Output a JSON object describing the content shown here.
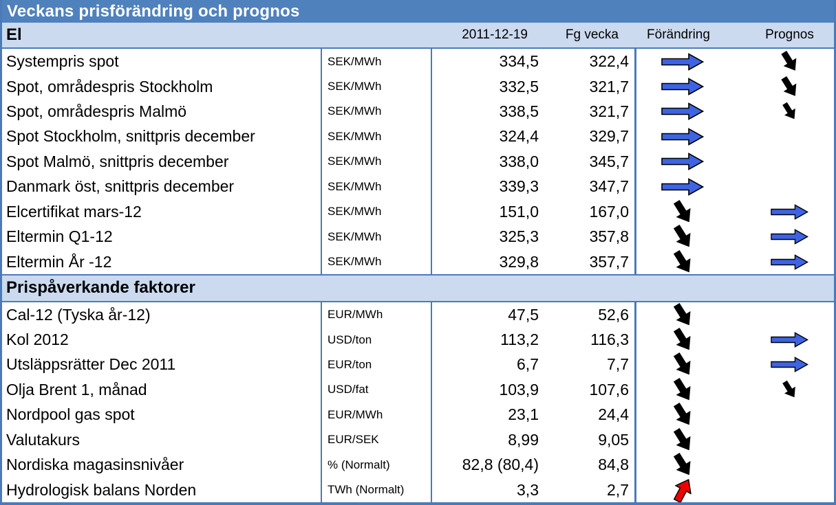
{
  "title": "Veckans prisförändring och prognos",
  "columns": {
    "date": "2011-12-19",
    "prev_week": "Fg vecka",
    "change": "Förändring",
    "forecast": "Prognos"
  },
  "colors": {
    "header_bg": "#4F81BD",
    "band_bg": "#CBDAEF",
    "border": "#4A7BB8",
    "arrow_blue": "#3E64E4",
    "arrow_red": "#EE0000",
    "arrow_black": "#000000"
  },
  "icons": {
    "right": "arrow-right-blue-icon",
    "down": "arrow-down-black-icon",
    "down_sm": "arrow-down-black-small-icon",
    "up": "arrow-up-red-icon"
  },
  "sections": [
    {
      "label": "El",
      "rows": [
        {
          "name": "Systempris spot",
          "unit": "SEK/MWh",
          "current": "334,5",
          "prev": "322,4",
          "change": "right",
          "forecast": "down"
        },
        {
          "name": "Spot, områdespris Stockholm",
          "unit": "SEK/MWh",
          "current": "332,5",
          "prev": "321,7",
          "change": "right",
          "forecast": "down"
        },
        {
          "name": "Spot, områdespris Malmö",
          "unit": "SEK/MWh",
          "current": "338,5",
          "prev": "321,7",
          "change": "right",
          "forecast": "down_sm"
        },
        {
          "name": "Spot Stockholm, snittpris december",
          "unit": "SEK/MWh",
          "current": "324,4",
          "prev": "329,7",
          "change": "right",
          "forecast": ""
        },
        {
          "name": "Spot Malmö, snittpris december",
          "unit": "SEK/MWh",
          "current": "338,0",
          "prev": "345,7",
          "change": "right",
          "forecast": ""
        },
        {
          "name": "Danmark öst, snittpris december",
          "unit": "SEK/MWh",
          "current": "339,3",
          "prev": "347,7",
          "change": "right",
          "forecast": ""
        },
        {
          "name": "Elcertifikat mars-12",
          "unit": "SEK/MWh",
          "current": "151,0",
          "prev": "167,0",
          "change": "down",
          "forecast": "right"
        },
        {
          "name": "Eltermin Q1-12",
          "unit": "SEK/MWh",
          "current": "325,3",
          "prev": "357,8",
          "change": "down",
          "forecast": "right"
        },
        {
          "name": "Eltermin År -12",
          "unit": "SEK/MWh",
          "current": "329,8",
          "prev": "357,7",
          "change": "down",
          "forecast": "right"
        }
      ]
    },
    {
      "label": "Prispåverkande faktorer",
      "rows": [
        {
          "name": "Cal-12 (Tyska år-12)",
          "unit": "EUR/MWh",
          "current": "47,5",
          "prev": "52,6",
          "change": "down",
          "forecast": ""
        },
        {
          "name": "Kol 2012",
          "unit": "USD/ton",
          "current": "113,2",
          "prev": "116,3",
          "change": "down",
          "forecast": "right"
        },
        {
          "name": "Utsläppsrätter Dec 2011",
          "unit": "EUR/ton",
          "current": "6,7",
          "prev": "7,7",
          "change": "down",
          "forecast": "right"
        },
        {
          "name": "Olja Brent 1, månad",
          "unit": "USD/fat",
          "current": "103,9",
          "prev": "107,6",
          "change": "down",
          "forecast": "down_sm"
        },
        {
          "name": "Nordpool gas spot",
          "unit": "EUR/MWh",
          "current": "23,1",
          "prev": "24,4",
          "change": "down",
          "forecast": ""
        },
        {
          "name": "Valutakurs",
          "unit": "EUR/SEK",
          "current": "8,99",
          "prev": "9,05",
          "change": "down",
          "forecast": ""
        },
        {
          "name": "Nordiska magasinsnivåer",
          "unit": "% (Normalt)",
          "current": "82,8 (80,4)",
          "prev": "84,8",
          "change": "down",
          "forecast": ""
        },
        {
          "name": "Hydrologisk balans Norden",
          "unit": "TWh (Normalt)",
          "current": "3,3",
          "prev": "2,7",
          "change": "up",
          "forecast": ""
        }
      ]
    }
  ]
}
